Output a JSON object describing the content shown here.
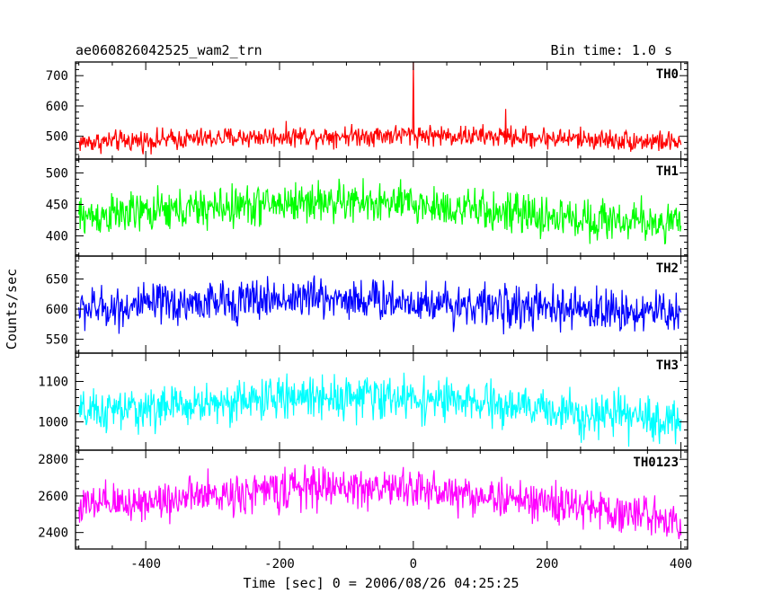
{
  "chart_data": {
    "type": "line",
    "title_left": "ae060826042525_wam2_trn",
    "title_right": "Bin time: 1.0 s",
    "xlabel": "Time [sec] 0 = 2006/08/26 04:25:25",
    "ylabel": "Counts/sec",
    "xlim": [
      -505,
      410
    ],
    "xticks": [
      -400,
      -200,
      0,
      200,
      400
    ],
    "x_start": -500,
    "x_end": 400,
    "bin_time": 1.0,
    "panels": [
      {
        "name": "TH0",
        "color": "#ff0000",
        "ylim": [
          425,
          745
        ],
        "yticks": [
          500,
          600,
          700
        ],
        "baseline": [
          [
            -500,
            480
          ],
          [
            -200,
            500
          ],
          [
            0,
            505
          ],
          [
            200,
            495
          ],
          [
            400,
            480
          ]
        ],
        "noise_amplitude": 30,
        "spikes": [
          {
            "x": 0,
            "y": 745
          },
          {
            "x": 138,
            "y": 590
          }
        ]
      },
      {
        "name": "TH1",
        "color": "#00ff00",
        "ylim": [
          368,
          522
        ],
        "yticks": [
          400,
          450,
          500
        ],
        "baseline": [
          [
            -500,
            430
          ],
          [
            -150,
            455
          ],
          [
            0,
            450
          ],
          [
            200,
            430
          ],
          [
            400,
            420
          ]
        ],
        "noise_amplitude": 28,
        "spikes": []
      },
      {
        "name": "TH2",
        "color": "#0000ff",
        "ylim": [
          527,
          688
        ],
        "yticks": [
          550,
          600,
          650
        ],
        "baseline": [
          [
            -500,
            600
          ],
          [
            -150,
            620
          ],
          [
            0,
            612
          ],
          [
            200,
            600
          ],
          [
            400,
            595
          ]
        ],
        "noise_amplitude": 30,
        "spikes": []
      },
      {
        "name": "TH3",
        "color": "#00ffff",
        "ylim": [
          930,
          1170
        ],
        "yticks": [
          1000,
          1100
        ],
        "baseline": [
          [
            -500,
            1020
          ],
          [
            -150,
            1065
          ],
          [
            0,
            1058
          ],
          [
            200,
            1030
          ],
          [
            400,
            1000
          ]
        ],
        "noise_amplitude": 45,
        "spikes": []
      },
      {
        "name": "TH0123",
        "color": "#ff00ff",
        "ylim": [
          2310,
          2850
        ],
        "yticks": [
          2400,
          2600,
          2800
        ],
        "baseline": [
          [
            -500,
            2540
          ],
          [
            -150,
            2650
          ],
          [
            0,
            2640
          ],
          [
            200,
            2560
          ],
          [
            400,
            2470
          ]
        ],
        "noise_amplitude": 95,
        "spikes": []
      }
    ]
  }
}
